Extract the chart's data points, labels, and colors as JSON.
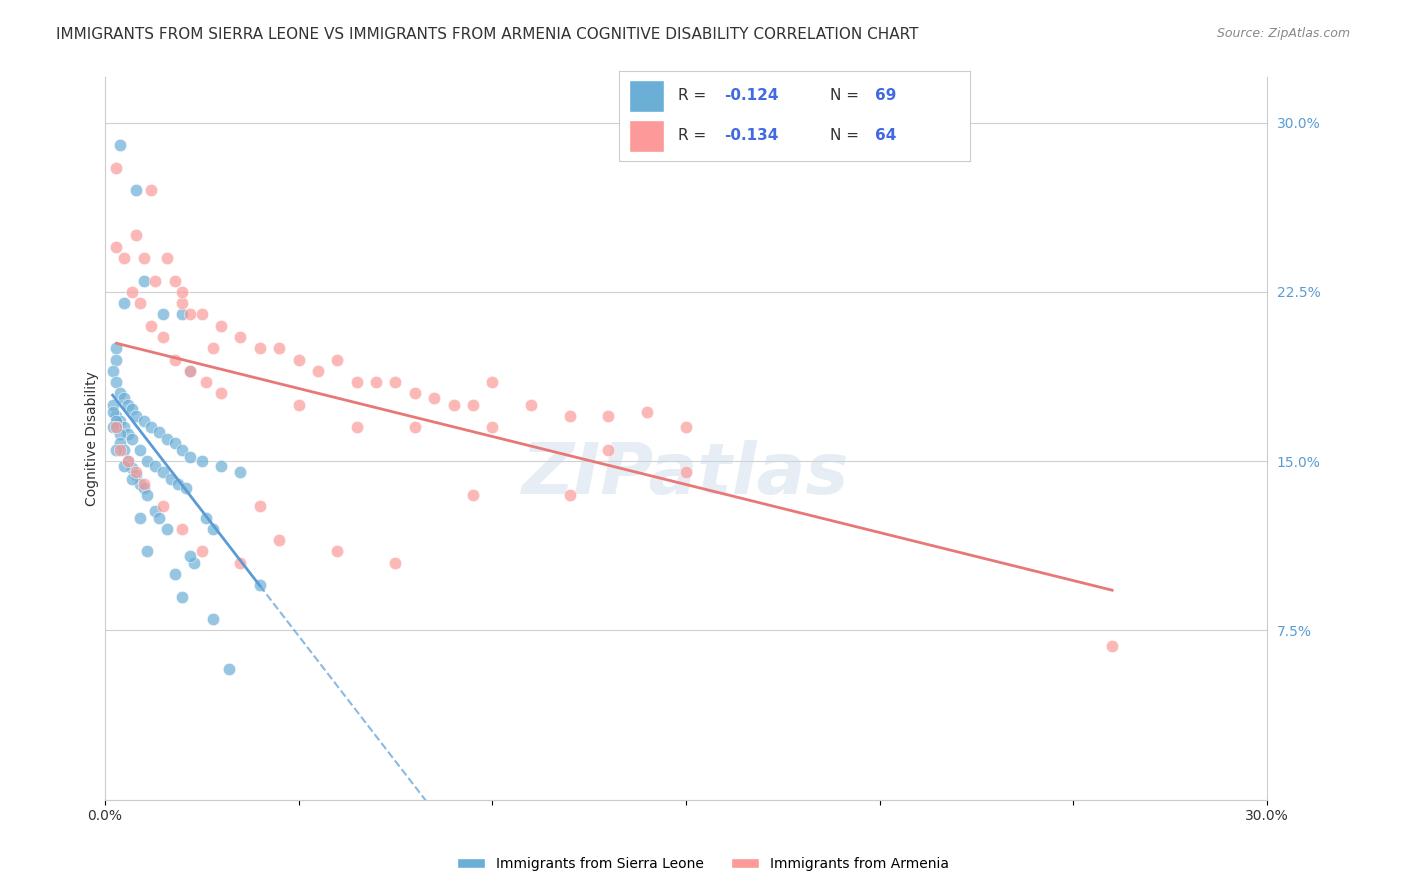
{
  "title": "IMMIGRANTS FROM SIERRA LEONE VS IMMIGRANTS FROM ARMENIA COGNITIVE DISABILITY CORRELATION CHART",
  "source": "Source: ZipAtlas.com",
  "ylabel": "Cognitive Disability",
  "right_yticks": [
    "30.0%",
    "22.5%",
    "15.0%",
    "7.5%"
  ],
  "right_ytick_vals": [
    0.3,
    0.225,
    0.15,
    0.075
  ],
  "xlim": [
    0.0,
    0.3
  ],
  "ylim": [
    0.0,
    0.32
  ],
  "legend_r_sl": "-0.124",
  "legend_n_sl": "69",
  "legend_r_arm": "-0.134",
  "legend_n_arm": "64",
  "sierra_leone_color": "#6baed6",
  "armenia_color": "#fb9a99",
  "sl_line_color": "#5b9bd5",
  "arm_line_color": "#e87878",
  "sl_x": [
    0.004,
    0.008,
    0.015,
    0.02,
    0.022,
    0.01,
    0.005,
    0.003,
    0.003,
    0.002,
    0.003,
    0.004,
    0.005,
    0.006,
    0.007,
    0.008,
    0.01,
    0.012,
    0.014,
    0.016,
    0.018,
    0.02,
    0.022,
    0.025,
    0.03,
    0.035,
    0.04,
    0.003,
    0.004,
    0.005,
    0.006,
    0.007,
    0.009,
    0.011,
    0.013,
    0.015,
    0.017,
    0.019,
    0.021,
    0.023,
    0.026,
    0.028,
    0.002,
    0.002,
    0.003,
    0.003,
    0.004,
    0.004,
    0.005,
    0.006,
    0.007,
    0.008,
    0.009,
    0.01,
    0.011,
    0.013,
    0.014,
    0.016,
    0.018,
    0.02,
    0.002,
    0.003,
    0.005,
    0.007,
    0.009,
    0.011,
    0.022,
    0.028,
    0.032
  ],
  "sl_y": [
    0.29,
    0.27,
    0.215,
    0.215,
    0.19,
    0.23,
    0.22,
    0.2,
    0.195,
    0.19,
    0.185,
    0.18,
    0.178,
    0.175,
    0.173,
    0.17,
    0.168,
    0.165,
    0.163,
    0.16,
    0.158,
    0.155,
    0.152,
    0.15,
    0.148,
    0.145,
    0.095,
    0.17,
    0.168,
    0.165,
    0.162,
    0.16,
    0.155,
    0.15,
    0.148,
    0.145,
    0.142,
    0.14,
    0.138,
    0.105,
    0.125,
    0.12,
    0.175,
    0.172,
    0.168,
    0.165,
    0.162,
    0.158,
    0.155,
    0.15,
    0.147,
    0.144,
    0.14,
    0.138,
    0.135,
    0.128,
    0.125,
    0.12,
    0.1,
    0.09,
    0.165,
    0.155,
    0.148,
    0.142,
    0.125,
    0.11,
    0.108,
    0.08,
    0.058
  ],
  "arm_x": [
    0.003,
    0.008,
    0.01,
    0.013,
    0.016,
    0.018,
    0.02,
    0.022,
    0.025,
    0.028,
    0.03,
    0.035,
    0.04,
    0.045,
    0.05,
    0.055,
    0.06,
    0.065,
    0.07,
    0.075,
    0.08,
    0.085,
    0.09,
    0.095,
    0.1,
    0.11,
    0.12,
    0.13,
    0.14,
    0.15,
    0.003,
    0.005,
    0.007,
    0.009,
    0.012,
    0.015,
    0.018,
    0.022,
    0.026,
    0.03,
    0.04,
    0.05,
    0.065,
    0.08,
    0.1,
    0.13,
    0.003,
    0.004,
    0.006,
    0.008,
    0.01,
    0.015,
    0.02,
    0.025,
    0.035,
    0.045,
    0.06,
    0.075,
    0.095,
    0.12,
    0.15,
    0.26,
    0.012,
    0.02
  ],
  "arm_y": [
    0.28,
    0.25,
    0.24,
    0.23,
    0.24,
    0.23,
    0.22,
    0.215,
    0.215,
    0.2,
    0.21,
    0.205,
    0.2,
    0.2,
    0.195,
    0.19,
    0.195,
    0.185,
    0.185,
    0.185,
    0.18,
    0.178,
    0.175,
    0.175,
    0.185,
    0.175,
    0.17,
    0.17,
    0.172,
    0.165,
    0.245,
    0.24,
    0.225,
    0.22,
    0.21,
    0.205,
    0.195,
    0.19,
    0.185,
    0.18,
    0.13,
    0.175,
    0.165,
    0.165,
    0.165,
    0.155,
    0.165,
    0.155,
    0.15,
    0.145,
    0.14,
    0.13,
    0.12,
    0.11,
    0.105,
    0.115,
    0.11,
    0.105,
    0.135,
    0.135,
    0.145,
    0.068,
    0.27,
    0.225
  ],
  "watermark": "ZIPatlas",
  "background_color": "#ffffff",
  "grid_color": "#d0d0d0",
  "title_fontsize": 11,
  "axis_label_fontsize": 10,
  "tick_fontsize": 10,
  "legend_fontsize": 11,
  "bottom_legend_sl": "Immigrants from Sierra Leone",
  "bottom_legend_arm": "Immigrants from Armenia"
}
